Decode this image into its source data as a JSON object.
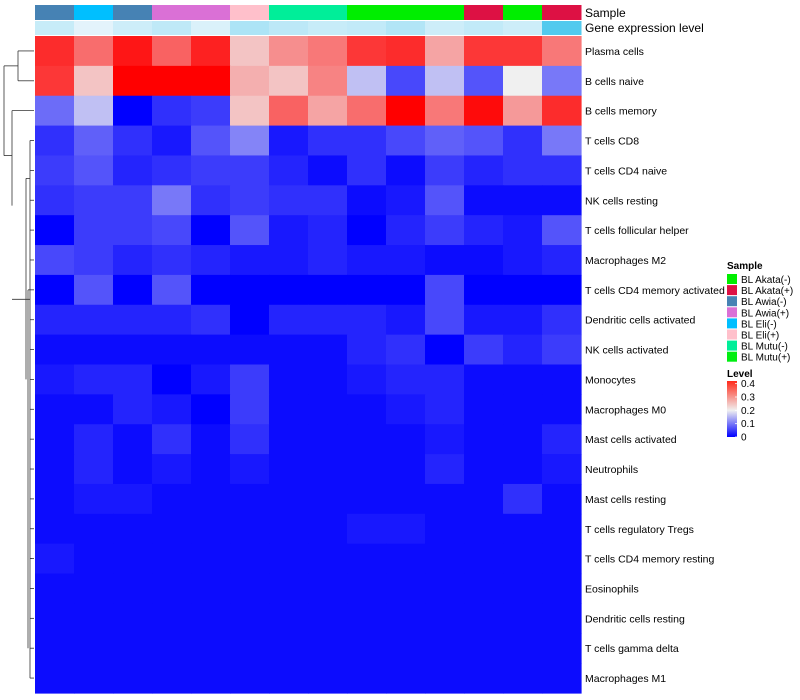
{
  "chart_data": {
    "type": "heatmap",
    "annotation_rows": [
      "Sample",
      "Gene expression level"
    ],
    "rows": [
      "Plasma cells",
      "B cells naive",
      "B cells memory",
      "T cells CD8",
      "T cells CD4 naive",
      "NK cells resting",
      "T cells follicular helper",
      "Macrophages M2",
      "T cells CD4 memory activated",
      "Dendritic cells activated",
      "NK cells activated",
      "Monocytes",
      "Macrophages M0",
      "Mast cells activated",
      "Neutrophils",
      "Mast cells resting",
      "T cells regulatory  Tregs",
      "T cells CD4 memory resting",
      "Eosinophils",
      "Dendritic cells resting",
      "T cells gamma delta",
      "Macrophages M1"
    ],
    "columns": {
      "sample": [
        "BL Awia(-)",
        "BL Eli(-)",
        "BL Awia(-)",
        "BL Awia(+)",
        "BL Awia(+)",
        "BL Eli(+)",
        "BL Mutu(-)",
        "BL Mutu(-)",
        "BL Akata(-)",
        "BL Akata(-)",
        "BL Akata(-)",
        "BL Akata(+)",
        "BL Akata(-)",
        "BL Akata(+)"
      ],
      "expression_level": [
        0.12,
        0.02,
        0.1,
        0.15,
        0.05,
        0.22,
        0.16,
        0.12,
        0.14,
        0.2,
        0.1,
        0.14,
        0.1,
        0.55
      ]
    },
    "values": [
      [
        0.38,
        0.32,
        0.4,
        0.33,
        0.39,
        0.24,
        0.29,
        0.31,
        0.37,
        0.38,
        0.27,
        0.37,
        0.37,
        0.31
      ],
      [
        0.37,
        0.24,
        0.42,
        0.42,
        0.42,
        0.26,
        0.24,
        0.3,
        0.16,
        0.06,
        0.16,
        0.07,
        0.2,
        0.1
      ],
      [
        0.09,
        0.16,
        0.0,
        0.04,
        0.05,
        0.24,
        0.33,
        0.27,
        0.32,
        0.42,
        0.31,
        0.41,
        0.28,
        0.38
      ],
      [
        0.04,
        0.08,
        0.04,
        0.02,
        0.07,
        0.11,
        0.02,
        0.04,
        0.04,
        0.06,
        0.08,
        0.07,
        0.04,
        0.1
      ],
      [
        0.05,
        0.07,
        0.03,
        0.04,
        0.05,
        0.05,
        0.03,
        0.01,
        0.04,
        0.01,
        0.05,
        0.03,
        0.04,
        0.04
      ],
      [
        0.04,
        0.05,
        0.05,
        0.1,
        0.04,
        0.05,
        0.04,
        0.04,
        0.01,
        0.02,
        0.07,
        0.01,
        0.01,
        0.01
      ],
      [
        0.0,
        0.05,
        0.05,
        0.06,
        0.0,
        0.07,
        0.02,
        0.03,
        0.0,
        0.03,
        0.05,
        0.03,
        0.02,
        0.07
      ],
      [
        0.06,
        0.05,
        0.03,
        0.04,
        0.03,
        0.02,
        0.02,
        0.03,
        0.02,
        0.02,
        0.01,
        0.01,
        0.02,
        0.03
      ],
      [
        0.0,
        0.07,
        0.0,
        0.07,
        0.0,
        0.0,
        0.0,
        0.0,
        0.0,
        0.0,
        0.06,
        0.0,
        0.0,
        0.0
      ],
      [
        0.03,
        0.03,
        0.03,
        0.03,
        0.04,
        0.0,
        0.03,
        0.03,
        0.03,
        0.02,
        0.06,
        0.02,
        0.02,
        0.04
      ],
      [
        0.01,
        0.01,
        0.01,
        0.01,
        0.01,
        0.01,
        0.01,
        0.01,
        0.03,
        0.04,
        0.0,
        0.05,
        0.03,
        0.05
      ],
      [
        0.02,
        0.03,
        0.03,
        0.0,
        0.02,
        0.05,
        0.01,
        0.01,
        0.02,
        0.03,
        0.03,
        0.01,
        0.01,
        0.01
      ],
      [
        0.01,
        0.01,
        0.03,
        0.02,
        0.0,
        0.05,
        0.01,
        0.01,
        0.01,
        0.02,
        0.03,
        0.01,
        0.01,
        0.01
      ],
      [
        0.01,
        0.03,
        0.01,
        0.04,
        0.01,
        0.04,
        0.01,
        0.01,
        0.01,
        0.01,
        0.02,
        0.01,
        0.01,
        0.03
      ],
      [
        0.01,
        0.03,
        0.01,
        0.02,
        0.01,
        0.02,
        0.01,
        0.01,
        0.01,
        0.01,
        0.03,
        0.01,
        0.01,
        0.02
      ],
      [
        0.01,
        0.02,
        0.02,
        0.01,
        0.01,
        0.01,
        0.01,
        0.01,
        0.01,
        0.01,
        0.01,
        0.01,
        0.04,
        0.01
      ],
      [
        0.01,
        0.01,
        0.01,
        0.01,
        0.01,
        0.01,
        0.01,
        0.01,
        0.02,
        0.02,
        0.01,
        0.01,
        0.01,
        0.01
      ],
      [
        0.02,
        0.01,
        0.01,
        0.01,
        0.01,
        0.01,
        0.01,
        0.01,
        0.01,
        0.01,
        0.01,
        0.01,
        0.01,
        0.01
      ],
      [
        0.01,
        0.01,
        0.01,
        0.01,
        0.01,
        0.01,
        0.01,
        0.01,
        0.01,
        0.01,
        0.01,
        0.01,
        0.01,
        0.01
      ],
      [
        0.01,
        0.01,
        0.01,
        0.01,
        0.01,
        0.01,
        0.01,
        0.01,
        0.01,
        0.01,
        0.01,
        0.01,
        0.01,
        0.01
      ],
      [
        0.01,
        0.01,
        0.01,
        0.01,
        0.01,
        0.01,
        0.01,
        0.01,
        0.01,
        0.01,
        0.01,
        0.01,
        0.01,
        0.01
      ],
      [
        0.01,
        0.01,
        0.01,
        0.01,
        0.01,
        0.01,
        0.01,
        0.01,
        0.01,
        0.01,
        0.01,
        0.01,
        0.01,
        0.01
      ]
    ],
    "color_scale": {
      "low": "#0000ff",
      "mid": "#f0f0f0",
      "high": "#ff0000",
      "stops": [
        0,
        0.2,
        0.42
      ]
    },
    "expression_colors": {
      "low": "#e8f5fb",
      "high": "#3ec4ec"
    },
    "legend": {
      "sample_title": "Sample",
      "sample_entries": [
        {
          "label": "BL Akata(-)",
          "color": "#00ee00"
        },
        {
          "label": "BL Akata(+)",
          "color": "#dd1144"
        },
        {
          "label": "BL Awia(-)",
          "color": "#4682b4"
        },
        {
          "label": "BL Awia(+)",
          "color": "#da70d6"
        },
        {
          "label": "BL Eli(-)",
          "color": "#00bfff"
        },
        {
          "label": "BL Eli(+)",
          "color": "#ffc0cb"
        },
        {
          "label": "BL Mutu(-)",
          "color": "#00ee99"
        },
        {
          "label": "BL Mutu(+)",
          "color": "#00ee11"
        }
      ],
      "level_title": "Level",
      "level_ticks": [
        "0.4",
        "0.3",
        "0.2",
        "0.1",
        "0"
      ],
      "level_tick_values": [
        0.4,
        0.3,
        0.2,
        0.1,
        0
      ],
      "placement": "right"
    },
    "row_dendrogram": true
  }
}
